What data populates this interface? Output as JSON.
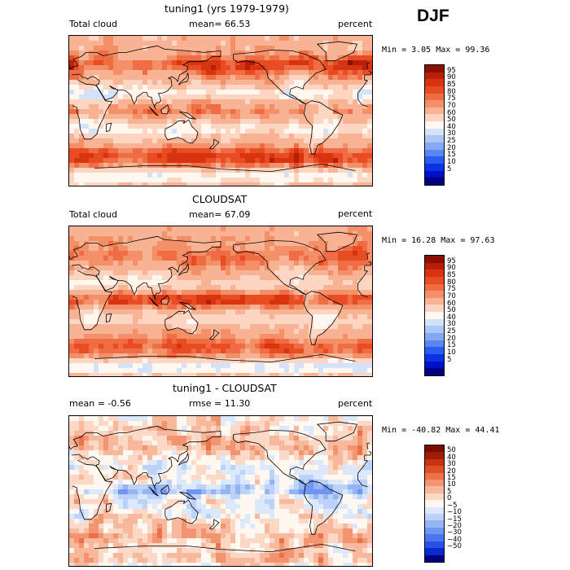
{
  "season": "DJF",
  "colors": {
    "full": [
      "#000080",
      "#0010c8",
      "#0a32e6",
      "#2a5cf0",
      "#5a86f2",
      "#84a8f4",
      "#aec8f6",
      "#d4e2fa",
      "#fff8f0",
      "#fcd6c2",
      "#f8b394",
      "#f49068",
      "#f06c44",
      "#e84c22",
      "#d83410",
      "#b81e08",
      "#8a1004"
    ],
    "diff": [
      "#000080",
      "#0a28d0",
      "#2a50e8",
      "#4a76ee",
      "#6e96f0",
      "#94b4f4",
      "#bcd2f8",
      "#dce8fc",
      "#fff8f0",
      "#fcd8c6",
      "#f8b89c",
      "#f29470",
      "#ec7048",
      "#e04e26",
      "#c83410",
      "#a01c06",
      "#7a0c02"
    ]
  },
  "chart_data": [
    {
      "type": "heatmap",
      "title": "tuning1 (yrs 1979-1979)",
      "variable": "Total cloud",
      "mean_text": "mean=  66.53",
      "units": "percent",
      "minmax_text": "Min =   3.05 Max =  99.36",
      "min": 3.05,
      "max": 99.36,
      "mean": 66.53,
      "levels": [
        "95",
        "90",
        "85",
        "80",
        "75",
        "70",
        "60",
        "50",
        "40",
        "30",
        "25",
        "20",
        "15",
        "10",
        "5"
      ],
      "pattern": {
        "base": 64,
        "storm": 22,
        "trop": 10,
        "subtrop": -14,
        "ocean": 4,
        "antarctic": -18,
        "noise": 9,
        "seed": 3
      }
    },
    {
      "type": "heatmap",
      "title": "CLOUDSAT",
      "variable": "Total cloud",
      "mean_text": "mean=  67.09",
      "units": "percent",
      "minmax_text": "Min =  16.28 Max =  97.63",
      "min": 16.28,
      "max": 97.63,
      "mean": 67.09,
      "levels": [
        "95",
        "90",
        "85",
        "80",
        "75",
        "70",
        "60",
        "50",
        "40",
        "30",
        "25",
        "20",
        "15",
        "10",
        "5"
      ],
      "pattern": {
        "base": 66,
        "storm": 14,
        "trop": 20,
        "subtrop": -10,
        "ocean": 4,
        "antarctic": -26,
        "noise": 7,
        "seed": 11
      }
    },
    {
      "type": "heatmap",
      "title": "tuning1 - CLOUDSAT",
      "mean_text": "mean =   -0.56",
      "rmse_text": "rmse =  11.30",
      "units": "percent",
      "minmax_text": "Min = -40.82 Max =  44.41",
      "min": -40.82,
      "max": 44.41,
      "mean": -0.56,
      "rmse": 11.3,
      "levels": [
        "50",
        "40",
        "30",
        "20",
        "15",
        "10",
        "5",
        "0",
        "−5",
        "−10",
        "−15",
        "−20",
        "−30",
        "−40",
        "−50"
      ],
      "pattern": {
        "base": 0,
        "storm": 8,
        "trop": -12,
        "subtrop": -4,
        "ocean": 0,
        "antarctic": 8,
        "noise": 12,
        "seed": 27
      }
    }
  ]
}
